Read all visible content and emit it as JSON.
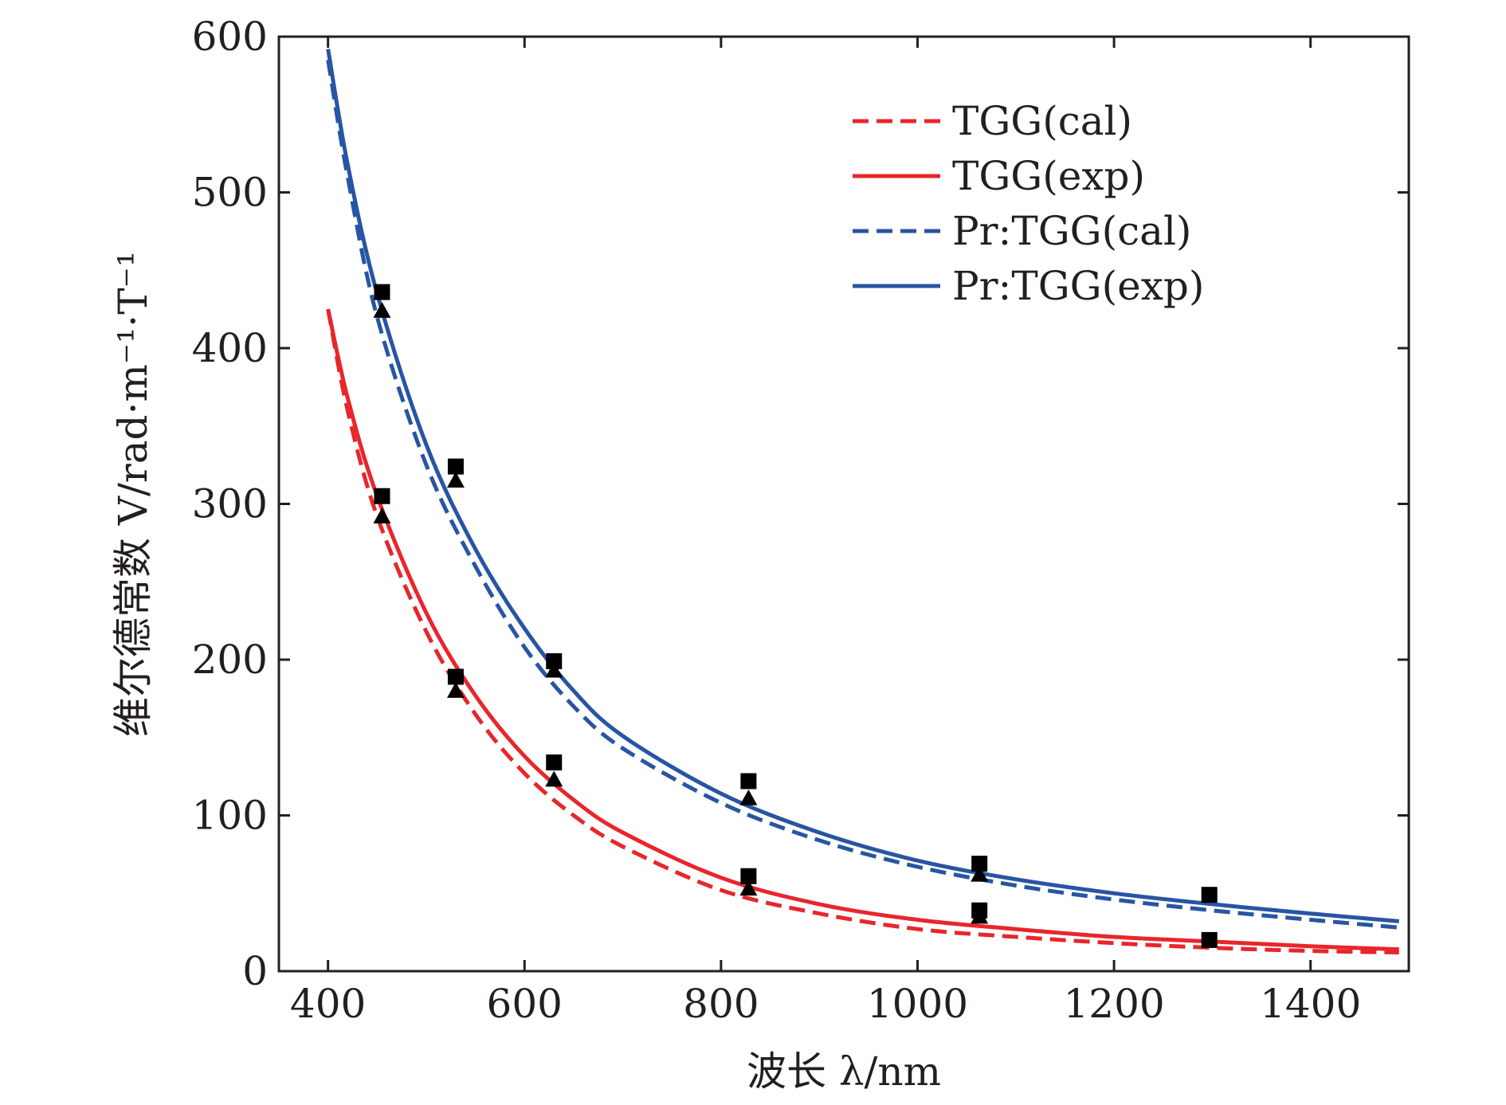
{
  "chart_data": {
    "type": "line",
    "xlabel": "波长 λ/nm",
    "ylabel": "维尔德常数 V/rad·m⁻¹·T⁻¹",
    "xlim": [
      350,
      1500
    ],
    "ylim": [
      0,
      600
    ],
    "xticks": [
      400,
      600,
      800,
      1000,
      1200,
      1400
    ],
    "yticks": [
      0,
      100,
      200,
      300,
      400,
      500,
      600
    ],
    "x_tick_labels": [
      "400",
      "600",
      "800",
      "1000",
      "1200",
      "1400"
    ],
    "y_tick_labels": [
      "0",
      "100",
      "200",
      "300",
      "400",
      "500",
      "600"
    ],
    "grid": false,
    "legend_position": "top-right",
    "series": [
      {
        "name": "TGG(cal)",
        "style": "dashed",
        "color": "#e8262b",
        "x": [
          400,
          420,
          450,
          500,
          550,
          600,
          650,
          700,
          800,
          900,
          1000,
          1100,
          1200,
          1300,
          1400,
          1490
        ],
        "y": [
          425,
          360,
          292,
          218,
          165,
          127,
          100,
          80,
          52,
          37,
          27,
          22,
          18,
          15,
          13,
          12
        ]
      },
      {
        "name": "TGG(exp)",
        "style": "solid",
        "color": "#e8262b",
        "x": [
          400,
          420,
          450,
          500,
          550,
          600,
          650,
          700,
          800,
          900,
          1000,
          1100,
          1200,
          1300,
          1400,
          1490
        ],
        "y": [
          425,
          368,
          305,
          230,
          177,
          138,
          110,
          89,
          60,
          43,
          33,
          27,
          22,
          19,
          16,
          14
        ]
      },
      {
        "name": "Pr:TGG(cal)",
        "style": "dashed",
        "color": "#2855a3",
        "x": [
          400,
          420,
          450,
          500,
          550,
          600,
          650,
          700,
          800,
          900,
          1000,
          1100,
          1200,
          1300,
          1400,
          1490
        ],
        "y": [
          585,
          510,
          420,
          325,
          260,
          208,
          170,
          143,
          108,
          84,
          67,
          55,
          46,
          39,
          33,
          28
        ]
      },
      {
        "name": "Pr:TGG(exp)",
        "style": "solid",
        "color": "#2855a3",
        "x": [
          400,
          420,
          450,
          500,
          550,
          600,
          650,
          700,
          800,
          900,
          1000,
          1100,
          1200,
          1300,
          1400,
          1490
        ],
        "y": [
          592,
          518,
          435,
          338,
          271,
          220,
          180,
          151,
          114,
          89,
          71,
          59,
          50,
          43,
          37,
          32
        ]
      }
    ],
    "markers": [
      {
        "shape": "square",
        "color": "#000000",
        "x": [
          455,
          530,
          630,
          828,
          1063,
          1297,
          455,
          530,
          630,
          828,
          1063,
          1297
        ],
        "y": [
          436,
          324,
          199,
          122,
          69,
          49,
          305,
          189,
          134,
          61,
          39,
          20
        ]
      },
      {
        "shape": "triangle",
        "color": "#000000",
        "x": [
          455,
          530,
          630,
          828,
          1063,
          455,
          530,
          630,
          828,
          1063
        ],
        "y": [
          424,
          315,
          193,
          111,
          62,
          292,
          180,
          123,
          53,
          35
        ]
      }
    ]
  }
}
